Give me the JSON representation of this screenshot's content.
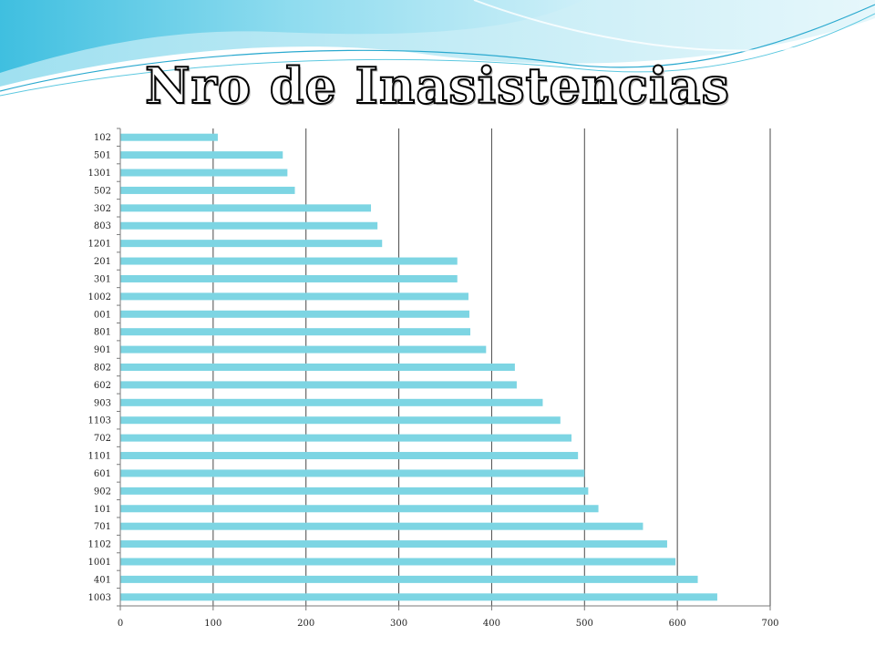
{
  "slide": {
    "title": "Nro de Inasistencias"
  },
  "colors": {
    "bar": "#7dd5e3",
    "grid": "#4a4a4a",
    "axis": "#7a7a7a",
    "wave_light": "#a8e6f2",
    "wave_mid": "#5cc8e0",
    "wave_dark": "#2aa9cf"
  },
  "chart_data": {
    "type": "bar",
    "orientation": "horizontal",
    "title": "",
    "xlabel": "",
    "ylabel": "",
    "xlim": [
      0,
      700
    ],
    "xticks": [
      0,
      100,
      200,
      300,
      400,
      500,
      600,
      700
    ],
    "grid": true,
    "categories": [
      "102",
      "501",
      "1301",
      "502",
      "302",
      "803",
      "1201",
      "201",
      "301",
      "1002",
      "001",
      "801",
      "901",
      "802",
      "602",
      "903",
      "1103",
      "702",
      "1101",
      "601",
      "902",
      "101",
      "701",
      "1102",
      "1001",
      "401",
      "1003"
    ],
    "values": [
      105,
      175,
      180,
      188,
      270,
      277,
      282,
      363,
      363,
      375,
      376,
      377,
      394,
      425,
      427,
      455,
      474,
      486,
      493,
      500,
      504,
      515,
      563,
      589,
      598,
      622,
      643
    ]
  }
}
